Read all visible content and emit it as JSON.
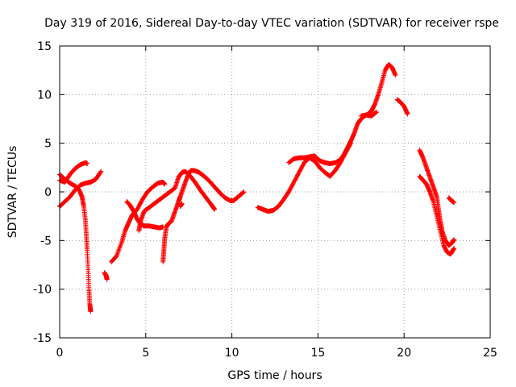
{
  "chart_data": {
    "type": "scatter",
    "title": "Day 319 of 2016, Sidereal Day-to-day VTEC variation (SDTVAR) for receiver rspe",
    "xlabel": "GPS time / hours",
    "ylabel": "SDTVAR / TECUs",
    "xlim": [
      0,
      25
    ],
    "ylim": [
      -15,
      15
    ],
    "xticks": [
      0,
      5,
      10,
      15,
      20,
      25
    ],
    "yticks": [
      -15,
      -10,
      -5,
      0,
      5,
      10,
      15
    ],
    "xtick_labels": [
      "0",
      "5",
      "10",
      "15",
      "20",
      "25"
    ],
    "ytick_labels": [
      "-15",
      "-10",
      "-5",
      "0",
      "5",
      "10",
      "15"
    ],
    "grid": true,
    "marker": "plus",
    "color": "#ff0000",
    "series": [
      {
        "points": [
          [
            0.0,
            1.8
          ],
          [
            0.3,
            1.3
          ],
          [
            0.6,
            0.9
          ],
          [
            0.9,
            0.6
          ],
          [
            1.1,
            0.3
          ],
          [
            1.3,
            -0.5
          ],
          [
            1.4,
            -1.5
          ],
          [
            1.5,
            -3
          ],
          [
            1.55,
            -4.5
          ],
          [
            1.6,
            -6
          ],
          [
            1.65,
            -8
          ],
          [
            1.7,
            -10
          ],
          [
            1.75,
            -11.5
          ],
          [
            1.8,
            -12.3
          ]
        ]
      },
      {
        "points": [
          [
            0.0,
            -1.5
          ],
          [
            0.3,
            -1.0
          ],
          [
            0.6,
            -0.5
          ],
          [
            0.9,
            0.2
          ],
          [
            1.2,
            0.7
          ],
          [
            1.5,
            0.9
          ],
          [
            1.8,
            1.0
          ],
          [
            2.1,
            1.3
          ],
          [
            2.4,
            2.1
          ]
        ]
      },
      {
        "points": [
          [
            0.0,
            1.2
          ],
          [
            0.3,
            1.0
          ],
          [
            0.6,
            1.8
          ],
          [
            0.9,
            2.4
          ],
          [
            1.2,
            2.8
          ],
          [
            1.5,
            3.0
          ],
          [
            1.6,
            2.9
          ]
        ]
      },
      {
        "points": [
          [
            2.6,
            -8.3
          ],
          [
            2.7,
            -8.6
          ],
          [
            2.75,
            -9.0
          ]
        ]
      },
      {
        "points": [
          [
            3.0,
            -7.2
          ],
          [
            3.3,
            -6.6
          ],
          [
            3.6,
            -5.2
          ],
          [
            3.8,
            -4.0
          ],
          [
            4.0,
            -3.2
          ],
          [
            4.2,
            -2.4
          ],
          [
            4.5,
            -1.8
          ],
          [
            4.8,
            -0.8
          ],
          [
            5.1,
            0.0
          ],
          [
            5.4,
            0.5
          ],
          [
            5.7,
            0.9
          ],
          [
            6.0,
            1.0
          ],
          [
            6.1,
            0.8
          ]
        ]
      },
      {
        "points": [
          [
            3.9,
            -1.0
          ],
          [
            4.1,
            -1.4
          ],
          [
            4.3,
            -2.0
          ],
          [
            4.5,
            -2.8
          ],
          [
            4.7,
            -3.3
          ],
          [
            4.9,
            -3.5
          ],
          [
            5.2,
            -3.5
          ],
          [
            5.5,
            -3.6
          ],
          [
            5.8,
            -3.7
          ],
          [
            6.0,
            -3.6
          ]
        ]
      },
      {
        "points": [
          [
            4.6,
            -4.0
          ],
          [
            4.7,
            -3.0
          ],
          [
            4.9,
            -2.0
          ],
          [
            5.2,
            -1.6
          ],
          [
            5.5,
            -1.2
          ],
          [
            5.8,
            -0.8
          ],
          [
            6.1,
            -0.4
          ],
          [
            6.4,
            0.0
          ],
          [
            6.7,
            0.4
          ],
          [
            6.9,
            1.5
          ],
          [
            7.1,
            2.0
          ],
          [
            7.3,
            2.1
          ],
          [
            7.6,
            1.6
          ],
          [
            7.9,
            0.9
          ],
          [
            8.2,
            0.1
          ],
          [
            8.5,
            -0.6
          ],
          [
            8.8,
            -1.3
          ],
          [
            9.0,
            -1.8
          ]
        ]
      },
      {
        "points": [
          [
            6.0,
            -7.2
          ],
          [
            6.05,
            -6.0
          ],
          [
            6.1,
            -4.8
          ],
          [
            6.2,
            -3.6
          ],
          [
            6.3,
            -3.3
          ],
          [
            6.5,
            -3.0
          ],
          [
            6.7,
            -2.0
          ],
          [
            6.9,
            -1.0
          ],
          [
            7.0,
            -0.5
          ],
          [
            7.2,
            0.5
          ],
          [
            7.4,
            1.5
          ],
          [
            7.6,
            2.2
          ],
          [
            7.8,
            2.2
          ],
          [
            8.1,
            2.0
          ],
          [
            8.4,
            1.6
          ],
          [
            8.7,
            1.1
          ],
          [
            9.0,
            0.5
          ],
          [
            9.3,
            -0.1
          ],
          [
            9.6,
            -0.6
          ],
          [
            9.9,
            -0.9
          ],
          [
            10.1,
            -0.9
          ],
          [
            10.3,
            -0.6
          ],
          [
            10.5,
            -0.3
          ],
          [
            10.7,
            0.0
          ]
        ]
      },
      {
        "points": [
          [
            7.0,
            -1.5
          ],
          [
            7.1,
            -1.2
          ]
        ]
      },
      {
        "points": [
          [
            11.5,
            -1.6
          ],
          [
            11.8,
            -1.8
          ],
          [
            12.1,
            -2.0
          ],
          [
            12.4,
            -1.9
          ],
          [
            12.7,
            -1.5
          ],
          [
            13.0,
            -0.8
          ],
          [
            13.3,
            0.0
          ],
          [
            13.6,
            1.0
          ],
          [
            13.9,
            2.0
          ],
          [
            14.2,
            3.0
          ],
          [
            14.5,
            3.5
          ],
          [
            14.8,
            3.2
          ],
          [
            15.1,
            2.5
          ],
          [
            15.4,
            2.0
          ],
          [
            15.7,
            1.6
          ],
          [
            16.0,
            2.2
          ],
          [
            16.3,
            3.0
          ],
          [
            16.6,
            4.0
          ],
          [
            16.9,
            5.0
          ]
        ]
      },
      {
        "points": [
          [
            13.3,
            3.0
          ],
          [
            13.6,
            3.4
          ],
          [
            13.9,
            3.5
          ],
          [
            14.2,
            3.5
          ],
          [
            14.5,
            3.6
          ],
          [
            14.8,
            3.7
          ],
          [
            15.1,
            3.2
          ],
          [
            15.4,
            3.0
          ],
          [
            15.7,
            2.9
          ],
          [
            16.0,
            3.0
          ],
          [
            16.3,
            3.3
          ],
          [
            16.5,
            3.8
          ],
          [
            16.7,
            4.5
          ],
          [
            16.9,
            5.2
          ],
          [
            17.1,
            6.0
          ],
          [
            17.3,
            7.0
          ],
          [
            17.5,
            7.5
          ],
          [
            17.7,
            7.8
          ],
          [
            17.9,
            8.0
          ],
          [
            18.1,
            8.3
          ],
          [
            18.3,
            9.0
          ],
          [
            18.5,
            10.0
          ],
          [
            18.7,
            11.2
          ],
          [
            18.9,
            12.5
          ],
          [
            19.1,
            13.1
          ],
          [
            19.3,
            12.8
          ],
          [
            19.5,
            12.0
          ]
        ]
      },
      {
        "points": [
          [
            17.5,
            7.8
          ],
          [
            17.8,
            7.9
          ],
          [
            18.1,
            7.8
          ],
          [
            18.4,
            8.2
          ]
        ]
      },
      {
        "points": [
          [
            19.6,
            9.5
          ],
          [
            19.8,
            9.2
          ],
          [
            20.0,
            8.8
          ],
          [
            20.2,
            8.0
          ]
        ]
      },
      {
        "points": [
          [
            20.9,
            4.3
          ],
          [
            21.1,
            3.5
          ],
          [
            21.3,
            2.5
          ],
          [
            21.5,
            1.5
          ],
          [
            21.7,
            0.5
          ],
          [
            21.9,
            -0.5
          ],
          [
            22.0,
            -1.8
          ],
          [
            22.1,
            -3.0
          ],
          [
            22.2,
            -4.0
          ],
          [
            22.4,
            -5.0
          ],
          [
            22.6,
            -5.5
          ],
          [
            22.8,
            -5.2
          ],
          [
            22.9,
            -4.9
          ]
        ]
      },
      {
        "points": [
          [
            20.9,
            1.6
          ],
          [
            21.1,
            1.2
          ],
          [
            21.3,
            0.8
          ],
          [
            21.5,
            0.0
          ],
          [
            21.7,
            -1.0
          ],
          [
            21.9,
            -2.5
          ],
          [
            22.1,
            -4.0
          ],
          [
            22.3,
            -5.5
          ],
          [
            22.5,
            -6.2
          ],
          [
            22.7,
            -6.4
          ],
          [
            22.9,
            -5.8
          ]
        ]
      },
      {
        "points": [
          [
            22.6,
            -0.6
          ],
          [
            22.75,
            -0.9
          ],
          [
            22.9,
            -1.1
          ]
        ]
      }
    ]
  }
}
